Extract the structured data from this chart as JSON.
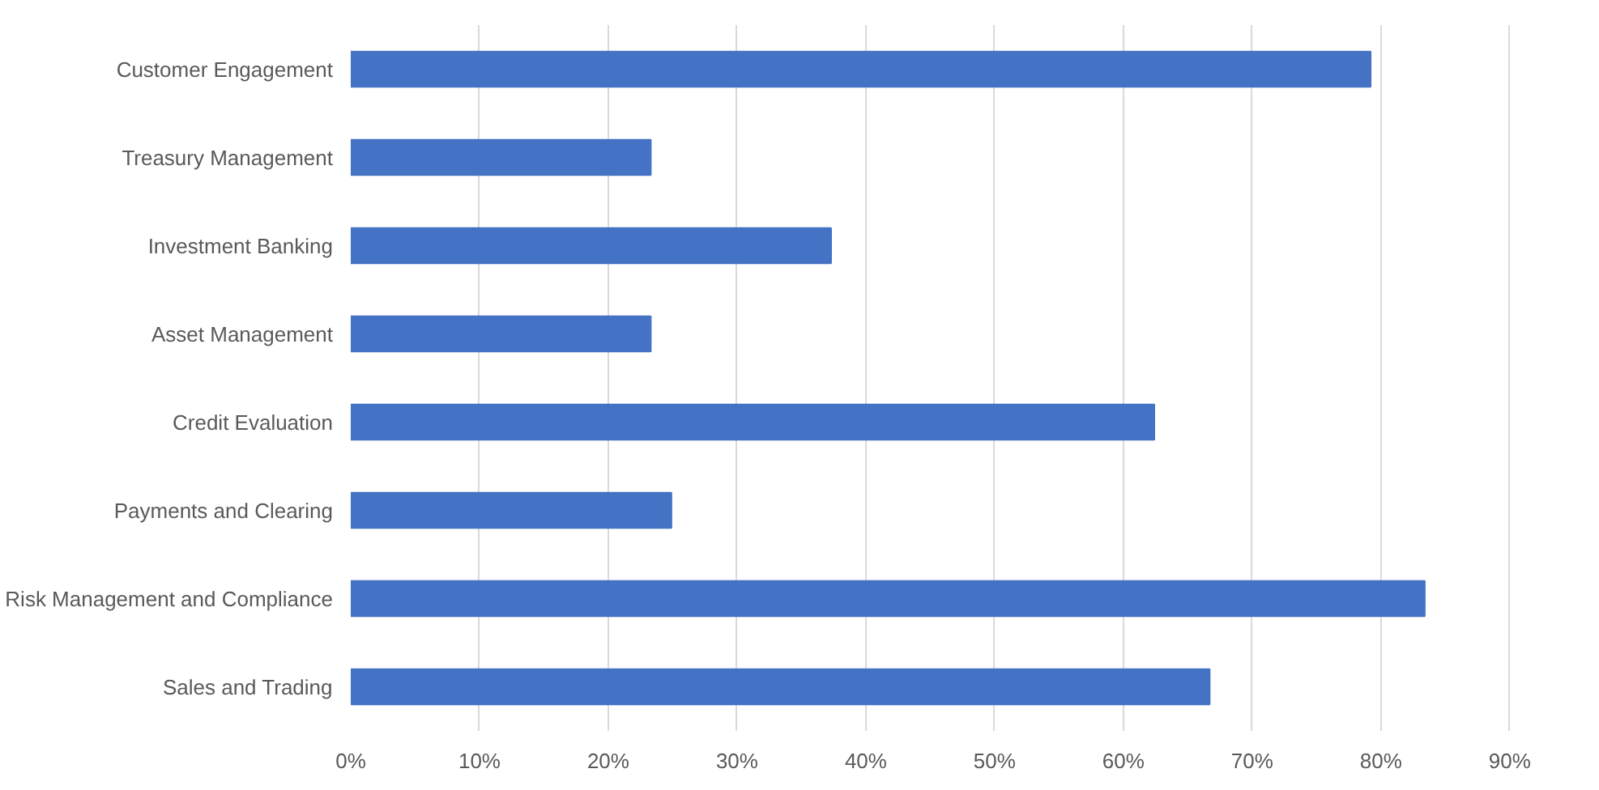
{
  "chart_data": {
    "type": "bar",
    "orientation": "horizontal",
    "categories": [
      "Customer Engagement",
      "Treasury Management",
      "Investment Banking",
      "Asset Management",
      "Credit Evaluation",
      "Payments and Clearing",
      "Risk Management and Compliance",
      "Sales and Trading"
    ],
    "values": [
      79.2,
      23.3,
      37.3,
      23.3,
      62.4,
      24.9,
      83.4,
      66.7
    ],
    "color": "#4472c4",
    "xlim": [
      0,
      90
    ],
    "xticks": [
      {
        "value": 0,
        "label": "0%"
      },
      {
        "value": 10,
        "label": "10%"
      },
      {
        "value": 20,
        "label": "20%"
      },
      {
        "value": 30,
        "label": "30%"
      },
      {
        "value": 40,
        "label": "40%"
      },
      {
        "value": 50,
        "label": "50%"
      },
      {
        "value": 60,
        "label": "60%"
      },
      {
        "value": 70,
        "label": "70%"
      },
      {
        "value": 80,
        "label": "80%"
      },
      {
        "value": 90,
        "label": "90%"
      }
    ],
    "grid": "x"
  }
}
